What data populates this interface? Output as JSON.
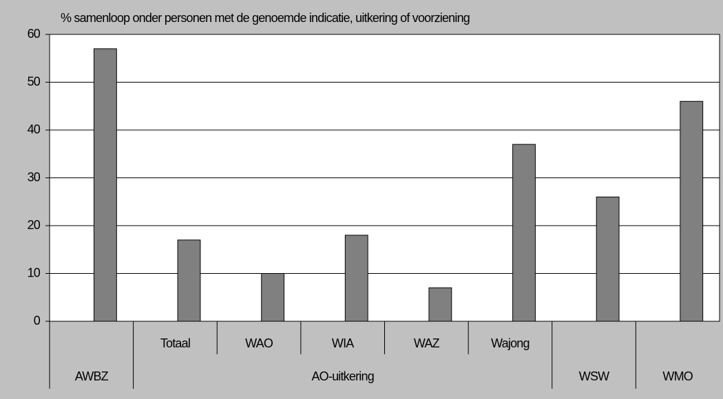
{
  "chart_data": {
    "type": "bar",
    "title": "% samenloop onder personen met de genoemde indicatie, uitkering of voorziening",
    "groups": [
      {
        "name": "AWBZ",
        "categories": [
          null
        ],
        "values": [
          57
        ]
      },
      {
        "name": "AO-uitkering",
        "categories": [
          "Totaal",
          "WAO",
          "WIA",
          "WAZ",
          "Wajong"
        ],
        "values": [
          17,
          10,
          18,
          7,
          37
        ]
      },
      {
        "name": "WSW",
        "categories": [
          null
        ],
        "values": [
          26
        ]
      },
      {
        "name": "WMO",
        "categories": [
          null
        ],
        "values": [
          46
        ]
      }
    ],
    "color": "#808080",
    "ylim": [
      0,
      60
    ],
    "yticks": [
      0,
      10,
      20,
      30,
      40,
      50,
      60
    ],
    "grid": true
  }
}
